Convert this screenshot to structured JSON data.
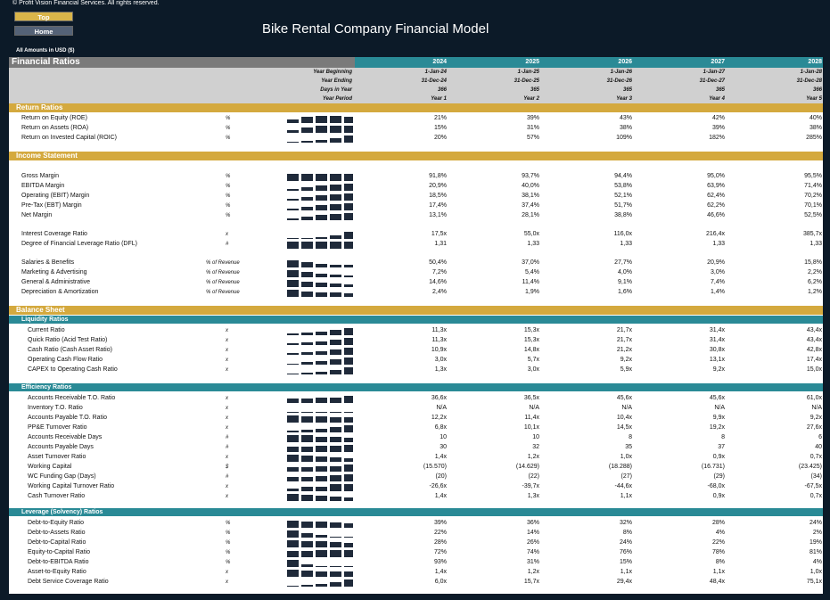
{
  "copyright": "© Profit Vision Financial Services. All rights reserved.",
  "nav": {
    "top": "Top",
    "home": "Home"
  },
  "title": "Bike Rental Company Financial Model",
  "amounts": "All Amounts in  USD ($)",
  "section_title": "Financial Ratios",
  "years": [
    "2024",
    "2025",
    "2026",
    "2027",
    "2028"
  ],
  "header_rows": [
    {
      "label": "Year Beginning",
      "values": [
        "1-Jan-24",
        "1-Jan-25",
        "1-Jan-26",
        "1-Jan-27",
        "1-Jan-28"
      ]
    },
    {
      "label": "Year Ending",
      "values": [
        "31-Dec-24",
        "31-Dec-25",
        "31-Dec-26",
        "31-Dec-27",
        "31-Dec-28"
      ]
    },
    {
      "label": "Days in Year",
      "values": [
        "366",
        "365",
        "365",
        "365",
        "366"
      ]
    },
    {
      "label": "Year Period",
      "values": [
        "Year 1",
        "Year 2",
        "Year 3",
        "Year 4",
        "Year 5"
      ]
    }
  ],
  "return_ratios": {
    "title": "Return Ratios",
    "rows": [
      {
        "label": "Return on Equity (ROE)",
        "unit": "%",
        "values": [
          "21%",
          "39%",
          "43%",
          "42%",
          "40%"
        ],
        "spark": [
          21,
          39,
          43,
          42,
          40
        ]
      },
      {
        "label": "Return on Assets (ROA)",
        "unit": "%",
        "values": [
          "15%",
          "31%",
          "38%",
          "39%",
          "38%"
        ],
        "spark": [
          15,
          31,
          38,
          39,
          38
        ]
      },
      {
        "label": "Return on Invested Capital (ROIC)",
        "unit": "%",
        "values": [
          "20%",
          "57%",
          "109%",
          "182%",
          "285%"
        ],
        "spark": [
          20,
          57,
          109,
          182,
          285
        ]
      }
    ]
  },
  "income_statement": {
    "title": "Income Statement",
    "margins": [
      {
        "label": "Gross Margin",
        "unit": "%",
        "values": [
          "91,8%",
          "93,7%",
          "94,4%",
          "95,0%",
          "95,5%"
        ],
        "spark": [
          91.8,
          93.7,
          94.4,
          95.0,
          95.5
        ]
      },
      {
        "label": "EBITDA Margin",
        "unit": "%",
        "values": [
          "20,9%",
          "40,0%",
          "53,8%",
          "63,9%",
          "71,4%"
        ],
        "spark": [
          20.9,
          40.0,
          53.8,
          63.9,
          71.4
        ]
      },
      {
        "label": "Operating (EBIT) Margin",
        "unit": "%",
        "values": [
          "18,5%",
          "38,1%",
          "52,1%",
          "62,4%",
          "70,2%"
        ],
        "spark": [
          18.5,
          38.1,
          52.1,
          62.4,
          70.2
        ]
      },
      {
        "label": "Pre-Tax (EBT) Margin",
        "unit": "%",
        "values": [
          "17,4%",
          "37,4%",
          "51,7%",
          "62,2%",
          "70,1%"
        ],
        "spark": [
          17.4,
          37.4,
          51.7,
          62.2,
          70.1
        ]
      },
      {
        "label": "Net Margin",
        "unit": "%",
        "values": [
          "13,1%",
          "28,1%",
          "38,8%",
          "46,6%",
          "52,5%"
        ],
        "spark": [
          13.1,
          28.1,
          38.8,
          46.6,
          52.5
        ]
      }
    ],
    "coverage": [
      {
        "label": "Interest Coverage Ratio",
        "unit": "x",
        "values": [
          "17,5x",
          "55,0x",
          "116,0x",
          "216,4x",
          "385,7x"
        ],
        "spark": [
          17.5,
          55.0,
          116.0,
          216.4,
          385.7
        ]
      },
      {
        "label": "Degree of Financial Leverage Ratio (DFL)",
        "unit": "#",
        "values": [
          "1,31",
          "1,33",
          "1,33",
          "1,33",
          "1,33"
        ],
        "spark": [
          1.31,
          1.33,
          1.33,
          1.33,
          1.33
        ]
      }
    ],
    "expenses": [
      {
        "label": "Salaries & Benefits",
        "unit": "% of Revenue",
        "values": [
          "50,4%",
          "37,0%",
          "27,7%",
          "20,9%",
          "15,8%"
        ],
        "spark": [
          50.4,
          37.0,
          27.7,
          20.9,
          15.8
        ]
      },
      {
        "label": "Marketing & Advertising",
        "unit": "% of Revenue",
        "values": [
          "7,2%",
          "5,4%",
          "4,0%",
          "3,0%",
          "2,2%"
        ],
        "spark": [
          7.2,
          5.4,
          4.0,
          3.0,
          2.2
        ]
      },
      {
        "label": "General & Administrative",
        "unit": "% of Revenue",
        "values": [
          "14,6%",
          "11,4%",
          "9,1%",
          "7,4%",
          "6,2%"
        ],
        "spark": [
          14.6,
          11.4,
          9.1,
          7.4,
          6.2
        ]
      },
      {
        "label": "Depreciation & Amortization",
        "unit": "% of Revenue",
        "values": [
          "2,4%",
          "1,9%",
          "1,6%",
          "1,4%",
          "1,2%"
        ],
        "spark": [
          2.4,
          1.9,
          1.6,
          1.4,
          1.2
        ]
      }
    ]
  },
  "balance_sheet": {
    "title": "Balance Sheet",
    "liquidity": {
      "title": "Liquidity Ratios",
      "rows": [
        {
          "label": "Current Ratio",
          "unit": "x",
          "values": [
            "11,3x",
            "15,3x",
            "21,7x",
            "31,4x",
            "43,4x"
          ],
          "spark": [
            11.3,
            15.3,
            21.7,
            31.4,
            43.4
          ]
        },
        {
          "label": "Quick Ratio (Acid Test Ratio)",
          "unit": "x",
          "values": [
            "11,3x",
            "15,3x",
            "21,7x",
            "31,4x",
            "43,4x"
          ],
          "spark": [
            11.3,
            15.3,
            21.7,
            31.4,
            43.4
          ]
        },
        {
          "label": "Cash Ratio (Cash Asset Ratio)",
          "unit": "x",
          "values": [
            "10,9x",
            "14,8x",
            "21,2x",
            "30,8x",
            "42,8x"
          ],
          "spark": [
            10.9,
            14.8,
            21.2,
            30.8,
            42.8
          ]
        },
        {
          "label": "Operating Cash Flow Ratio",
          "unit": "x",
          "values": [
            "3,0x",
            "5,7x",
            "9,2x",
            "13,1x",
            "17,4x"
          ],
          "spark": [
            3.0,
            5.7,
            9.2,
            13.1,
            17.4
          ]
        },
        {
          "label": "CAPEX to Operating Cash Ratio",
          "unit": "x",
          "values": [
            "1,3x",
            "3,0x",
            "5,9x",
            "9,2x",
            "15,0x"
          ],
          "spark": [
            1.3,
            3.0,
            5.9,
            9.2,
            15.0
          ]
        }
      ]
    },
    "efficiency": {
      "title": "Efficiency Ratios",
      "rows": [
        {
          "label": "Accounts Receivable T.O. Ratio",
          "unit": "x",
          "values": [
            "36,6x",
            "36,5x",
            "45,6x",
            "45,6x",
            "61,0x"
          ],
          "spark": [
            36.6,
            36.5,
            45.6,
            45.6,
            61.0
          ]
        },
        {
          "label": "Inventory T.O. Ratio",
          "unit": "x",
          "values": [
            "N/A",
            "N/A",
            "N/A",
            "N/A",
            "N/A"
          ],
          "spark": [
            0,
            0,
            0,
            0,
            0
          ]
        },
        {
          "label": "Accounts Payable T.O. Ratio",
          "unit": "x",
          "values": [
            "12,2x",
            "11,4x",
            "10,4x",
            "9,9x",
            "9,2x"
          ],
          "spark": [
            12.2,
            11.4,
            10.4,
            9.9,
            9.2
          ]
        },
        {
          "label": "PP&E Turnover Ratio",
          "unit": "x",
          "values": [
            "6,8x",
            "10,1x",
            "14,5x",
            "19,2x",
            "27,6x"
          ],
          "spark": [
            6.8,
            10.1,
            14.5,
            19.2,
            27.6
          ]
        },
        {
          "label": "Accounts Receivable Days",
          "unit": "#",
          "values": [
            "10",
            "10",
            "8",
            "8",
            "6"
          ],
          "spark": [
            10,
            10,
            8,
            8,
            6
          ]
        },
        {
          "label": "Accounts Payable Days",
          "unit": "#",
          "values": [
            "30",
            "32",
            "35",
            "37",
            "40"
          ],
          "spark": [
            30,
            32,
            35,
            37,
            40
          ]
        },
        {
          "label": "Asset Turnover Ratio",
          "unit": "x",
          "values": [
            "1,4x",
            "1,2x",
            "1,0x",
            "0,9x",
            "0,7x"
          ],
          "spark": [
            1.4,
            1.2,
            1.0,
            0.9,
            0.7
          ]
        },
        {
          "label": "Working Capital",
          "unit": "$",
          "values": [
            "(15.570)",
            "(14.629)",
            "(18.288)",
            "(16.731)",
            "(23.425)"
          ],
          "spark": [
            15.57,
            14.629,
            18.288,
            16.731,
            23.425
          ]
        },
        {
          "label": "WC Funding Gap (Days)",
          "unit": "#",
          "values": [
            "(20)",
            "(22)",
            "(27)",
            "(29)",
            "(34)"
          ],
          "spark": [
            20,
            22,
            27,
            29,
            34
          ]
        },
        {
          "label": "Working Capital Turnover Ratio",
          "unit": "x",
          "values": [
            "-26,6x",
            "-39,7x",
            "-44,6x",
            "-68,0x",
            "-67,5x"
          ],
          "spark": [
            26.6,
            39.7,
            44.6,
            68.0,
            67.5
          ]
        },
        {
          "label": "Cash Turnover Ratio",
          "unit": "x",
          "values": [
            "1,4x",
            "1,3x",
            "1,1x",
            "0,9x",
            "0,7x"
          ],
          "spark": [
            1.4,
            1.3,
            1.1,
            0.9,
            0.7
          ]
        }
      ]
    },
    "leverage": {
      "title": "Leverage (Solvency) Ratios",
      "rows": [
        {
          "label": "Debt-to-Equity Ratio",
          "unit": "%",
          "values": [
            "39%",
            "36%",
            "32%",
            "28%",
            "24%"
          ],
          "spark": [
            39,
            36,
            32,
            28,
            24
          ]
        },
        {
          "label": "Debt-to-Assets Ratio",
          "unit": "%",
          "values": [
            "22%",
            "14%",
            "8%",
            "4%",
            "2%"
          ],
          "spark": [
            22,
            14,
            8,
            4,
            2
          ]
        },
        {
          "label": "Debt-to-Capital Ratio",
          "unit": "%",
          "values": [
            "28%",
            "26%",
            "24%",
            "22%",
            "19%"
          ],
          "spark": [
            28,
            26,
            24,
            22,
            19
          ]
        },
        {
          "label": "Equity-to-Capital Ratio",
          "unit": "%",
          "values": [
            "72%",
            "74%",
            "76%",
            "78%",
            "81%"
          ],
          "spark": [
            72,
            74,
            76,
            78,
            81
          ]
        },
        {
          "label": "Debt-to-EBITDA Ratio",
          "unit": "%",
          "values": [
            "93%",
            "31%",
            "15%",
            "8%",
            "4%"
          ],
          "spark": [
            93,
            31,
            15,
            8,
            4
          ]
        },
        {
          "label": "Asset-to-Equity Ratio",
          "unit": "x",
          "values": [
            "1,4x",
            "1,2x",
            "1,1x",
            "1,1x",
            "1,0x"
          ],
          "spark": [
            1.4,
            1.2,
            1.1,
            1.1,
            1.0
          ]
        },
        {
          "label": "Debt Service Coverage Ratio",
          "unit": "x",
          "values": [
            "6,0x",
            "15,7x",
            "29,4x",
            "48,4x",
            "75,1x"
          ],
          "spark": [
            6.0,
            15.7,
            29.4,
            48.4,
            75.1
          ]
        }
      ]
    }
  },
  "colors": {
    "navy": "#0c1a28",
    "teal": "#2a8a96",
    "gold": "#d4a93e",
    "grey": "#7a7a7a",
    "spark": "#1f2a3a"
  }
}
